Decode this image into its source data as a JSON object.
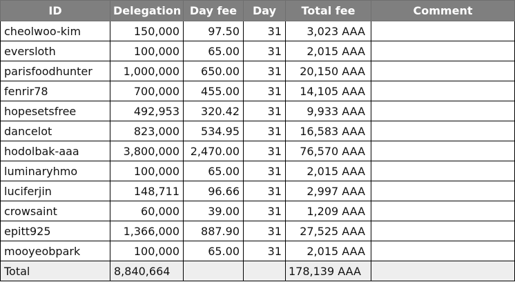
{
  "columns": {
    "id": "ID",
    "delegation": "Delegation",
    "day_fee": "Day fee",
    "day": "Day",
    "total_fee": "Total fee",
    "comment": "Comment"
  },
  "rows": [
    {
      "id": "cheolwoo-kim",
      "delegation": "150,000",
      "day_fee": "97.50",
      "day": "31",
      "total_fee": "3,023 AAA",
      "comment": ""
    },
    {
      "id": "eversloth",
      "delegation": "100,000",
      "day_fee": "65.00",
      "day": "31",
      "total_fee": "2,015 AAA",
      "comment": ""
    },
    {
      "id": "parisfoodhunter",
      "delegation": "1,000,000",
      "day_fee": "650.00",
      "day": "31",
      "total_fee": "20,150 AAA",
      "comment": ""
    },
    {
      "id": "fenrir78",
      "delegation": "700,000",
      "day_fee": "455.00",
      "day": "31",
      "total_fee": "14,105 AAA",
      "comment": ""
    },
    {
      "id": "hopesetsfree",
      "delegation": "492,953",
      "day_fee": "320.42",
      "day": "31",
      "total_fee": "9,933 AAA",
      "comment": ""
    },
    {
      "id": "dancelot",
      "delegation": "823,000",
      "day_fee": "534.95",
      "day": "31",
      "total_fee": "16,583 AAA",
      "comment": ""
    },
    {
      "id": "hodolbak-aaa",
      "delegation": "3,800,000",
      "day_fee": "2,470.00",
      "day": "31",
      "total_fee": "76,570 AAA",
      "comment": ""
    },
    {
      "id": "luminaryhmo",
      "delegation": "100,000",
      "day_fee": "65.00",
      "day": "31",
      "total_fee": "2,015 AAA",
      "comment": ""
    },
    {
      "id": "luciferjin",
      "delegation": "148,711",
      "day_fee": "96.66",
      "day": "31",
      "total_fee": "2,997 AAA",
      "comment": ""
    },
    {
      "id": "crowsaint",
      "delegation": "60,000",
      "day_fee": "39.00",
      "day": "31",
      "total_fee": "1,209 AAA",
      "comment": ""
    },
    {
      "id": "epitt925",
      "delegation": "1,366,000",
      "day_fee": "887.90",
      "day": "31",
      "total_fee": "27,525 AAA",
      "comment": ""
    },
    {
      "id": "mooyeobpark",
      "delegation": "100,000",
      "day_fee": "65.00",
      "day": "31",
      "total_fee": "2,015 AAA",
      "comment": ""
    }
  ],
  "total": {
    "label": "Total",
    "delegation": "8,840,664",
    "day_fee": "",
    "day": "",
    "total_fee": "178,139 AAA",
    "comment": ""
  },
  "colors": {
    "header_bg": "#7f7f7f",
    "header_text": "#ffffff",
    "total_row_bg": "#eeeeee",
    "border": "#000000"
  }
}
